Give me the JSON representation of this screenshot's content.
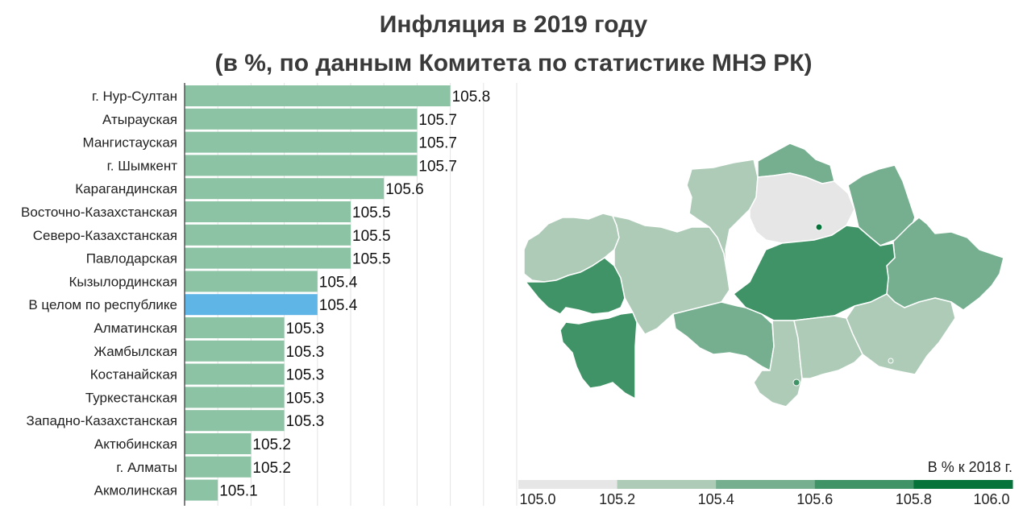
{
  "title_line1": "Инфляция в 2019 году",
  "title_line2": "(в %, по данным Комитета по статистике МНЭ РК)",
  "chart_data": {
    "type": "bar",
    "orientation": "horizontal",
    "categories": [
      "г. Нур-Султан",
      "Атырауская",
      "Мангистауская",
      "г. Шымкент",
      "Карагандинская",
      "Восточно-Казахстанская",
      "Северо-Казахстанская",
      "Павлодарская",
      "Кызылординская",
      "В целом по республике",
      "Алматинская",
      "Жамбылская",
      "Костанайская",
      "Туркестанская",
      "Западно-Казахстанская",
      "Актюбинская",
      "г. Алматы",
      "Акмолинская"
    ],
    "values": [
      105.8,
      105.7,
      105.7,
      105.7,
      105.6,
      105.5,
      105.5,
      105.5,
      105.4,
      105.4,
      105.3,
      105.3,
      105.3,
      105.3,
      105.3,
      105.2,
      105.2,
      105.1
    ],
    "value_labels": [
      "105.8",
      "105.7",
      "105.7",
      "105.7",
      "105.6",
      "105.5",
      "105.5",
      "105.5",
      "105.4",
      "105.4",
      "105.3",
      "105.3",
      "105.3",
      "105.3",
      "105.3",
      "105.2",
      "105.2",
      "105.1"
    ],
    "highlight_category": "В целом по республике",
    "xlim": [
      105.0,
      106.0
    ],
    "grid": true,
    "bar_color": "#8dc3a5",
    "highlight_color": "#5fb5e6"
  },
  "legend": {
    "title": "В % к 2018 г.",
    "ticks": [
      "105.0",
      "105.2",
      "105.4",
      "105.6",
      "105.8",
      "106.0"
    ],
    "colors": [
      "#e6e6e6",
      "#aecbb7",
      "#75af8f",
      "#3f9366",
      "#06733a"
    ]
  }
}
